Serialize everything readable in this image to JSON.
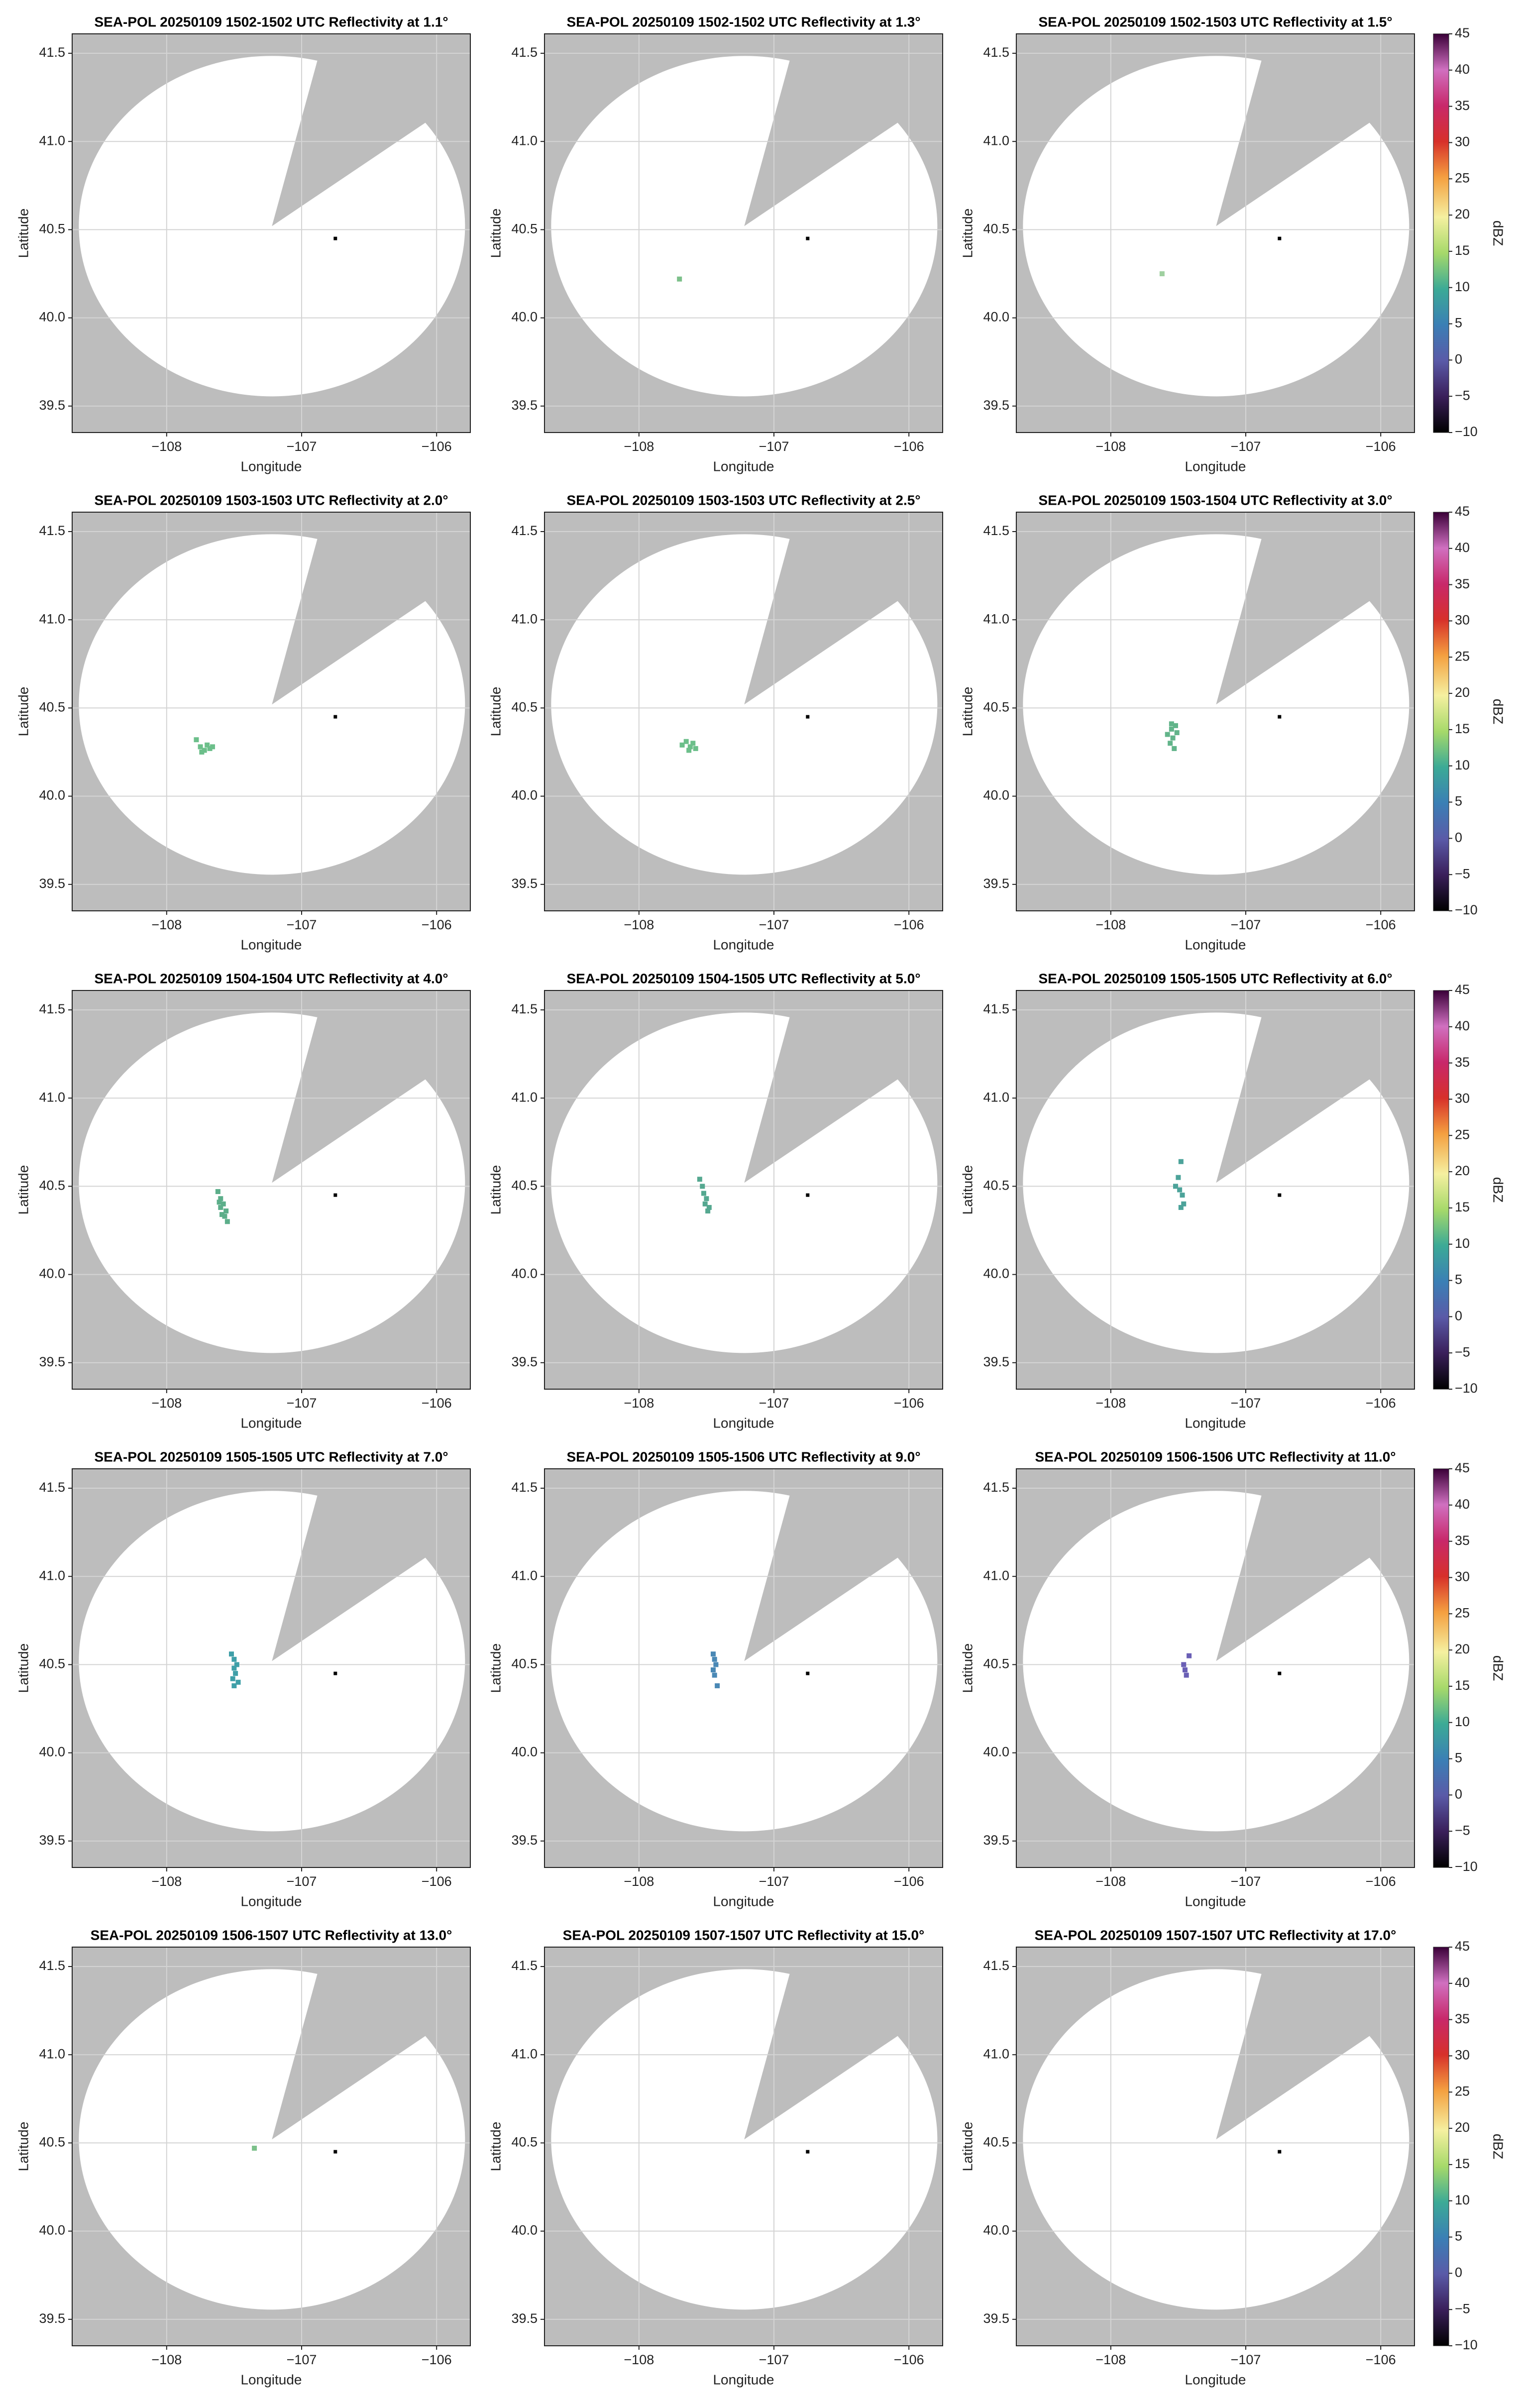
{
  "chart_data": [
    {
      "type": "scatter",
      "title": "SEA-POL 20250109 1502-1502 UTC Reflectivity at 1.1°",
      "xlabel": "Longitude",
      "ylabel": "Latitude",
      "xlim": [
        -108.7,
        -105.75
      ],
      "ylim": [
        39.35,
        41.61
      ],
      "xticks": [
        {
          "value": -108,
          "label": "−108"
        },
        {
          "value": -107,
          "label": "−107"
        },
        {
          "value": -106,
          "label": "−106"
        }
      ],
      "yticks": [
        39.5,
        {
          "value": 40,
          "label": "40.0"
        },
        40.5,
        {
          "value": 41,
          "label": "41.0"
        },
        41.5
      ],
      "grid": true,
      "series": [
        {
          "x": [
            -106.75
          ],
          "y": [
            40.45
          ],
          "color": "#000000"
        }
      ]
    },
    {
      "type": "scatter",
      "title": "SEA-POL 20250109 1502-1502 UTC Reflectivity at 1.3°",
      "xlabel": "Longitude",
      "ylabel": "Latitude",
      "xlim": [
        -108.7,
        -105.75
      ],
      "ylim": [
        39.35,
        41.61
      ],
      "xticks": [
        {
          "value": -108,
          "label": "−108"
        },
        {
          "value": -107,
          "label": "−107"
        },
        {
          "value": -106,
          "label": "−106"
        }
      ],
      "yticks": [
        39.5,
        {
          "value": 40,
          "label": "40.0"
        },
        40.5,
        {
          "value": 41,
          "label": "41.0"
        },
        41.5
      ],
      "grid": true,
      "series": [
        {
          "x": [
            -107.7
          ],
          "y": [
            40.22
          ],
          "color": "#7cc08a"
        },
        {
          "x": [
            -106.75
          ],
          "y": [
            40.45
          ],
          "color": "#000000"
        }
      ]
    },
    {
      "type": "scatter",
      "title": "SEA-POL 20250109 1502-1503 UTC Reflectivity at 1.5°",
      "xlabel": "Longitude",
      "ylabel": "Latitude",
      "xlim": [
        -108.7,
        -105.75
      ],
      "ylim": [
        39.35,
        41.61
      ],
      "xticks": [
        {
          "value": -108,
          "label": "−108"
        },
        {
          "value": -107,
          "label": "−107"
        },
        {
          "value": -106,
          "label": "−106"
        }
      ],
      "yticks": [
        39.5,
        {
          "value": 40,
          "label": "40.0"
        },
        40.5,
        {
          "value": 41,
          "label": "41.0"
        },
        41.5
      ],
      "grid": true,
      "series": [
        {
          "x": [
            -107.62
          ],
          "y": [
            40.25
          ],
          "color": "#9fd0a0"
        },
        {
          "x": [
            -106.75
          ],
          "y": [
            40.45
          ],
          "color": "#000000"
        }
      ],
      "colorbar": {
        "label": "dBZ",
        "lim": [
          -10,
          45
        ],
        "ticks": [
          {
            "value": -10,
            "label": "−10"
          },
          {
            "value": -5,
            "label": "−5"
          },
          0,
          5,
          10,
          15,
          20,
          25,
          30,
          35,
          40,
          45
        ]
      }
    },
    {
      "type": "scatter",
      "title": "SEA-POL 20250109 1503-1503 UTC Reflectivity at 2.0°",
      "xlabel": "Longitude",
      "ylabel": "Latitude",
      "xlim": [
        -108.7,
        -105.75
      ],
      "ylim": [
        39.35,
        41.61
      ],
      "xticks": [
        {
          "value": -108,
          "label": "−108"
        },
        {
          "value": -107,
          "label": "−107"
        },
        {
          "value": -106,
          "label": "−106"
        }
      ],
      "yticks": [
        39.5,
        {
          "value": 40,
          "label": "40.0"
        },
        40.5,
        {
          "value": 41,
          "label": "41.0"
        },
        41.5
      ],
      "grid": true,
      "series": [
        {
          "x": [
            -107.78,
            -107.75,
            -107.72,
            -107.7,
            -107.68,
            -107.74,
            -107.66
          ],
          "y": [
            40.32,
            40.28,
            40.26,
            40.29,
            40.27,
            40.25,
            40.28
          ],
          "color": "#6cbf8a"
        },
        {
          "x": [
            -106.75
          ],
          "y": [
            40.45
          ],
          "color": "#000000"
        }
      ]
    },
    {
      "type": "scatter",
      "title": "SEA-POL 20250109 1503-1503 UTC Reflectivity at 2.5°",
      "xlabel": "Longitude",
      "ylabel": "Latitude",
      "xlim": [
        -108.7,
        -105.75
      ],
      "ylim": [
        39.35,
        41.61
      ],
      "xticks": [
        {
          "value": -108,
          "label": "−108"
        },
        {
          "value": -107,
          "label": "−107"
        },
        {
          "value": -106,
          "label": "−106"
        }
      ],
      "yticks": [
        39.5,
        {
          "value": 40,
          "label": "40.0"
        },
        40.5,
        {
          "value": 41,
          "label": "41.0"
        },
        41.5
      ],
      "grid": true,
      "series": [
        {
          "x": [
            -107.68,
            -107.65,
            -107.62,
            -107.6,
            -107.58,
            -107.63
          ],
          "y": [
            40.29,
            40.31,
            40.28,
            40.3,
            40.27,
            40.26
          ],
          "color": "#6cbf8a"
        },
        {
          "x": [
            -106.75
          ],
          "y": [
            40.45
          ],
          "color": "#000000"
        }
      ]
    },
    {
      "type": "scatter",
      "title": "SEA-POL 20250109 1503-1504 UTC Reflectivity at 3.0°",
      "xlabel": "Longitude",
      "ylabel": "Latitude",
      "xlim": [
        -108.7,
        -105.75
      ],
      "ylim": [
        39.35,
        41.61
      ],
      "xticks": [
        {
          "value": -108,
          "label": "−108"
        },
        {
          "value": -107,
          "label": "−107"
        },
        {
          "value": -106,
          "label": "−106"
        }
      ],
      "yticks": [
        39.5,
        {
          "value": 40,
          "label": "40.0"
        },
        40.5,
        {
          "value": 41,
          "label": "41.0"
        },
        41.5
      ],
      "grid": true,
      "series": [
        {
          "x": [
            -107.58,
            -107.55,
            -107.52,
            -107.54,
            -107.56,
            -107.51,
            -107.53,
            -107.55
          ],
          "y": [
            40.35,
            40.38,
            40.4,
            40.33,
            40.3,
            40.36,
            40.27,
            40.41
          ],
          "color": "#62b48a"
        },
        {
          "x": [
            -106.75
          ],
          "y": [
            40.45
          ],
          "color": "#000000"
        }
      ],
      "colorbar": {
        "label": "dBZ",
        "lim": [
          -10,
          45
        ],
        "ticks": [
          {
            "value": -10,
            "label": "−10"
          },
          {
            "value": -5,
            "label": "−5"
          },
          0,
          5,
          10,
          15,
          20,
          25,
          30,
          35,
          40,
          45
        ]
      }
    },
    {
      "type": "scatter",
      "title": "SEA-POL 20250109 1504-1504 UTC Reflectivity at 4.0°",
      "xlabel": "Longitude",
      "ylabel": "Latitude",
      "xlim": [
        -108.7,
        -105.75
      ],
      "ylim": [
        39.35,
        41.61
      ],
      "xticks": [
        {
          "value": -108,
          "label": "−108"
        },
        {
          "value": -107,
          "label": "−107"
        },
        {
          "value": -106,
          "label": "−106"
        }
      ],
      "yticks": [
        39.5,
        {
          "value": 40,
          "label": "40.0"
        },
        40.5,
        {
          "value": 41,
          "label": "41.0"
        },
        41.5
      ],
      "grid": true,
      "series": [
        {
          "x": [
            -107.62,
            -107.6,
            -107.58,
            -107.56,
            -107.6,
            -107.57,
            -107.55,
            -107.59,
            -107.61
          ],
          "y": [
            40.47,
            40.43,
            40.4,
            40.36,
            40.38,
            40.33,
            40.3,
            40.34,
            40.41
          ],
          "color": "#5cae8a"
        },
        {
          "x": [
            -106.75
          ],
          "y": [
            40.45
          ],
          "color": "#000000"
        }
      ]
    },
    {
      "type": "scatter",
      "title": "SEA-POL 20250109 1504-1505 UTC Reflectivity at 5.0°",
      "xlabel": "Longitude",
      "ylabel": "Latitude",
      "xlim": [
        -108.7,
        -105.75
      ],
      "ylim": [
        39.35,
        41.61
      ],
      "xticks": [
        {
          "value": -108,
          "label": "−108"
        },
        {
          "value": -107,
          "label": "−107"
        },
        {
          "value": -106,
          "label": "−106"
        }
      ],
      "yticks": [
        39.5,
        {
          "value": 40,
          "label": "40.0"
        },
        40.5,
        {
          "value": 41,
          "label": "41.0"
        },
        41.5
      ],
      "grid": true,
      "series": [
        {
          "x": [
            -107.55,
            -107.53,
            -107.52,
            -107.5,
            -107.48,
            -107.51,
            -107.49
          ],
          "y": [
            40.54,
            40.5,
            40.46,
            40.43,
            40.38,
            40.4,
            40.36
          ],
          "color": "#55a890"
        },
        {
          "x": [
            -106.75
          ],
          "y": [
            40.45
          ],
          "color": "#000000"
        }
      ]
    },
    {
      "type": "scatter",
      "title": "SEA-POL 20250109 1505-1505 UTC Reflectivity at 6.0°",
      "xlabel": "Longitude",
      "ylabel": "Latitude",
      "xlim": [
        -108.7,
        -105.75
      ],
      "ylim": [
        39.35,
        41.61
      ],
      "xticks": [
        {
          "value": -108,
          "label": "−108"
        },
        {
          "value": -107,
          "label": "−107"
        },
        {
          "value": -106,
          "label": "−106"
        }
      ],
      "yticks": [
        39.5,
        {
          "value": 40,
          "label": "40.0"
        },
        40.5,
        {
          "value": 41,
          "label": "41.0"
        },
        41.5
      ],
      "grid": true,
      "series": [
        {
          "x": [
            -107.48,
            -107.5,
            -107.52,
            -107.49,
            -107.47,
            -107.46,
            -107.48
          ],
          "y": [
            40.64,
            40.55,
            40.5,
            40.48,
            40.45,
            40.4,
            40.38
          ],
          "color": "#4ca39a"
        },
        {
          "x": [
            -106.75
          ],
          "y": [
            40.45
          ],
          "color": "#000000"
        }
      ],
      "colorbar": {
        "label": "dBZ",
        "lim": [
          -10,
          45
        ],
        "ticks": [
          {
            "value": -10,
            "label": "−10"
          },
          {
            "value": -5,
            "label": "−5"
          },
          0,
          5,
          10,
          15,
          20,
          25,
          30,
          35,
          40,
          45
        ]
      }
    },
    {
      "type": "scatter",
      "title": "SEA-POL 20250109 1505-1505 UTC Reflectivity at 7.0°",
      "xlabel": "Longitude",
      "ylabel": "Latitude",
      "xlim": [
        -108.7,
        -105.75
      ],
      "ylim": [
        39.35,
        41.61
      ],
      "xticks": [
        {
          "value": -108,
          "label": "−108"
        },
        {
          "value": -107,
          "label": "−107"
        },
        {
          "value": -106,
          "label": "−106"
        }
      ],
      "yticks": [
        39.5,
        {
          "value": 40,
          "label": "40.0"
        },
        40.5,
        {
          "value": 41,
          "label": "41.0"
        },
        41.5
      ],
      "grid": true,
      "series": [
        {
          "x": [
            -107.52,
            -107.5,
            -107.48,
            -107.5,
            -107.49,
            -107.51,
            -107.47,
            -107.5
          ],
          "y": [
            40.56,
            40.53,
            40.5,
            40.48,
            40.45,
            40.42,
            40.4,
            40.38
          ],
          "color": "#3f9fa8"
        },
        {
          "x": [
            -106.75
          ],
          "y": [
            40.45
          ],
          "color": "#000000"
        }
      ]
    },
    {
      "type": "scatter",
      "title": "SEA-POL 20250109 1505-1506 UTC Reflectivity at 9.0°",
      "xlabel": "Longitude",
      "ylabel": "Latitude",
      "xlim": [
        -108.7,
        -105.75
      ],
      "ylim": [
        39.35,
        41.61
      ],
      "xticks": [
        {
          "value": -108,
          "label": "−108"
        },
        {
          "value": -107,
          "label": "−107"
        },
        {
          "value": -106,
          "label": "−106"
        }
      ],
      "yticks": [
        39.5,
        {
          "value": 40,
          "label": "40.0"
        },
        40.5,
        {
          "value": 41,
          "label": "41.0"
        },
        41.5
      ],
      "grid": true,
      "series": [
        {
          "x": [
            -107.45,
            -107.44,
            -107.43,
            -107.45,
            -107.44,
            -107.42
          ],
          "y": [
            40.56,
            40.53,
            40.5,
            40.47,
            40.44,
            40.38
          ],
          "color": "#4a88b5"
        },
        {
          "x": [
            -106.75
          ],
          "y": [
            40.45
          ],
          "color": "#000000"
        }
      ]
    },
    {
      "type": "scatter",
      "title": "SEA-POL 20250109 1506-1506 UTC Reflectivity at 11.0°",
      "xlabel": "Longitude",
      "ylabel": "Latitude",
      "xlim": [
        -108.7,
        -105.75
      ],
      "ylim": [
        39.35,
        41.61
      ],
      "xticks": [
        {
          "value": -108,
          "label": "−108"
        },
        {
          "value": -107,
          "label": "−107"
        },
        {
          "value": -106,
          "label": "−106"
        }
      ],
      "yticks": [
        39.5,
        {
          "value": 40,
          "label": "40.0"
        },
        40.5,
        {
          "value": 41,
          "label": "41.0"
        },
        41.5
      ],
      "grid": true,
      "series": [
        {
          "x": [
            -107.46,
            -107.45,
            -107.44,
            -107.42
          ],
          "y": [
            40.5,
            40.47,
            40.44,
            40.55
          ],
          "color": "#6a5fb5"
        },
        {
          "x": [
            -106.75
          ],
          "y": [
            40.45
          ],
          "color": "#000000"
        }
      ],
      "colorbar": {
        "label": "dBZ",
        "lim": [
          -10,
          45
        ],
        "ticks": [
          {
            "value": -10,
            "label": "−10"
          },
          {
            "value": -5,
            "label": "−5"
          },
          0,
          5,
          10,
          15,
          20,
          25,
          30,
          35,
          40,
          45
        ]
      }
    },
    {
      "type": "scatter",
      "title": "SEA-POL 20250109 1506-1507 UTC Reflectivity at 13.0°",
      "xlabel": "Longitude",
      "ylabel": "Latitude",
      "xlim": [
        -108.7,
        -105.75
      ],
      "ylim": [
        39.35,
        41.61
      ],
      "xticks": [
        {
          "value": -108,
          "label": "−108"
        },
        {
          "value": -107,
          "label": "−107"
        },
        {
          "value": -106,
          "label": "−106"
        }
      ],
      "yticks": [
        39.5,
        {
          "value": 40,
          "label": "40.0"
        },
        40.5,
        {
          "value": 41,
          "label": "41.0"
        },
        41.5
      ],
      "grid": true,
      "series": [
        {
          "x": [
            -107.35
          ],
          "y": [
            40.47
          ],
          "color": "#7cc08a"
        },
        {
          "x": [
            -106.75
          ],
          "y": [
            40.45
          ],
          "color": "#000000"
        }
      ]
    },
    {
      "type": "scatter",
      "title": "SEA-POL 20250109 1507-1507 UTC Reflectivity at 15.0°",
      "xlabel": "Longitude",
      "ylabel": "Latitude",
      "xlim": [
        -108.7,
        -105.75
      ],
      "ylim": [
        39.35,
        41.61
      ],
      "xticks": [
        {
          "value": -108,
          "label": "−108"
        },
        {
          "value": -107,
          "label": "−107"
        },
        {
          "value": -106,
          "label": "−106"
        }
      ],
      "yticks": [
        39.5,
        {
          "value": 40,
          "label": "40.0"
        },
        40.5,
        {
          "value": 41,
          "label": "41.0"
        },
        41.5
      ],
      "grid": true,
      "series": [
        {
          "x": [
            -106.75
          ],
          "y": [
            40.45
          ],
          "color": "#000000"
        }
      ]
    },
    {
      "type": "scatter",
      "title": "SEA-POL 20250109 1507-1507 UTC Reflectivity at 17.0°",
      "xlabel": "Longitude",
      "ylabel": "Latitude",
      "xlim": [
        -108.7,
        -105.75
      ],
      "ylim": [
        39.35,
        41.61
      ],
      "xticks": [
        {
          "value": -108,
          "label": "−108"
        },
        {
          "value": -107,
          "label": "−107"
        },
        {
          "value": -106,
          "label": "−106"
        }
      ],
      "yticks": [
        39.5,
        {
          "value": 40,
          "label": "40.0"
        },
        40.5,
        {
          "value": 41,
          "label": "41.0"
        },
        41.5
      ],
      "grid": true,
      "series": [
        {
          "x": [
            -106.75
          ],
          "y": [
            40.45
          ],
          "color": "#000000"
        }
      ],
      "colorbar": {
        "label": "dBZ",
        "lim": [
          -10,
          45
        ],
        "ticks": [
          {
            "value": -10,
            "label": "−10"
          },
          {
            "value": -5,
            "label": "−5"
          },
          0,
          5,
          10,
          15,
          20,
          25,
          30,
          35,
          40,
          45
        ]
      }
    }
  ]
}
